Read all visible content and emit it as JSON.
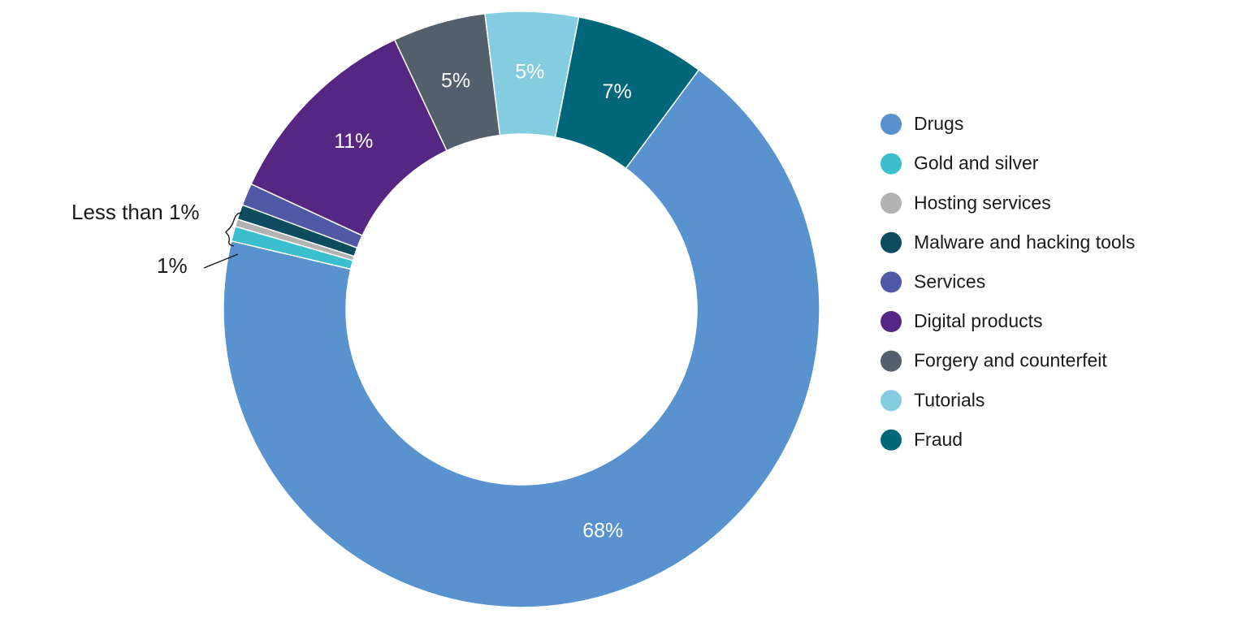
{
  "chart_data": {
    "type": "pie",
    "variant": "donut",
    "title": "",
    "categories": [
      "Drugs",
      "Gold and silver",
      "Hosting services",
      "Malware and hacking tools",
      "Services",
      "Digital products",
      "Forgery and counterfeit",
      "Tutorials",
      "Fraud"
    ],
    "values": [
      68,
      0.8,
      0.4,
      0.8,
      1.2,
      11,
      5,
      5,
      7
    ],
    "slice_labels": [
      "68%",
      "",
      "",
      "",
      "",
      "11%",
      "5%",
      "5%",
      "7%"
    ],
    "colors": [
      "#5893cf",
      "#3bbfcf",
      "#b2b2b2",
      "#0b4d5f",
      "#5059a5",
      "#552783",
      "#535f6b",
      "#84cce0",
      "#00677a"
    ],
    "legend": {
      "position": "right",
      "items": [
        {
          "label": "Drugs",
          "color": "#5893cf"
        },
        {
          "label": "Gold and silver",
          "color": "#3bbfcf"
        },
        {
          "label": "Hosting services",
          "color": "#b2b2b2"
        },
        {
          "label": "Malware and hacking tools",
          "color": "#0b4d5f"
        },
        {
          "label": "Services",
          "color": "#5059a5"
        },
        {
          "label": "Digital products",
          "color": "#552783"
        },
        {
          "label": "Forgery and counterfeit",
          "color": "#535f6b"
        },
        {
          "label": "Tutorials",
          "color": "#84cce0"
        },
        {
          "label": "Fraud",
          "color": "#00677a"
        }
      ]
    },
    "annotations": {
      "less_than": "Less than 1%",
      "one_percent": "1%"
    }
  }
}
